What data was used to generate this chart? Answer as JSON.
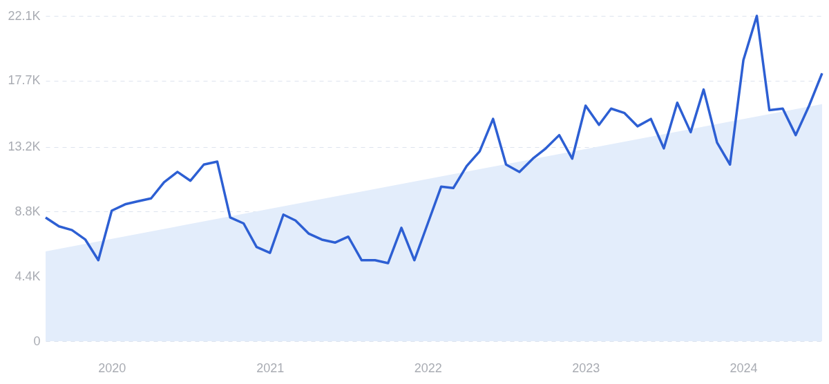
{
  "chart_data": {
    "type": "line",
    "x": [
      "2019-08",
      "2019-09",
      "2019-10",
      "2019-11",
      "2019-12",
      "2020-01",
      "2020-02",
      "2020-03",
      "2020-04",
      "2020-05",
      "2020-06",
      "2020-07",
      "2020-08",
      "2020-09",
      "2020-10",
      "2020-11",
      "2020-12",
      "2021-01",
      "2021-02",
      "2021-03",
      "2021-04",
      "2021-05",
      "2021-06",
      "2021-07",
      "2021-08",
      "2021-09",
      "2021-10",
      "2021-11",
      "2021-12",
      "2022-01",
      "2022-02",
      "2022-03",
      "2022-04",
      "2022-05",
      "2022-06",
      "2022-07",
      "2022-08",
      "2022-09",
      "2022-10",
      "2022-11",
      "2022-12",
      "2023-01",
      "2023-02",
      "2023-03",
      "2023-04",
      "2023-05",
      "2023-06",
      "2023-07",
      "2023-08",
      "2023-09",
      "2023-10",
      "2023-11",
      "2023-12",
      "2024-01",
      "2024-02",
      "2024-03",
      "2024-04",
      "2024-05",
      "2024-06",
      "2024-07"
    ],
    "series": [
      {
        "type": "area",
        "color": "#e3edfb",
        "x": [
          "2019-08",
          "2024-07"
        ],
        "values": [
          6100,
          16100
        ]
      },
      {
        "color": "#2d5fd3",
        "values": [
          8400,
          7800,
          7550,
          6900,
          5500,
          8870,
          9300,
          9500,
          9700,
          10800,
          11500,
          10900,
          12000,
          12200,
          8400,
          8000,
          6400,
          6000,
          8600,
          8200,
          7300,
          6900,
          6700,
          7100,
          5500,
          5500,
          5300,
          7700,
          5500,
          8000,
          10500,
          10400,
          11900,
          12900,
          15100,
          12000,
          11500,
          12400,
          13100,
          14000,
          12400,
          16000,
          14700,
          15800,
          15500,
          14600,
          15100,
          13100,
          16200,
          14200,
          17100,
          13500,
          12000,
          19100,
          22100,
          15700,
          15800,
          14000,
          16000,
          18200
        ]
      }
    ],
    "xlim": [
      "2019-08",
      "2024-07"
    ],
    "xticks": [
      "2020",
      "2021",
      "2022",
      "2023",
      "2024"
    ],
    "ylim": [
      0,
      22100
    ],
    "yticks": [
      {
        "value": 0,
        "label": "0"
      },
      {
        "value": 4400,
        "label": "4.4K"
      },
      {
        "value": 8800,
        "label": "8.8K"
      },
      {
        "value": 13200,
        "label": "13.2K"
      },
      {
        "value": 17700,
        "label": "17.7K"
      },
      {
        "value": 22100,
        "label": "22.1K"
      }
    ],
    "grid": "y",
    "line_style": "solid"
  }
}
